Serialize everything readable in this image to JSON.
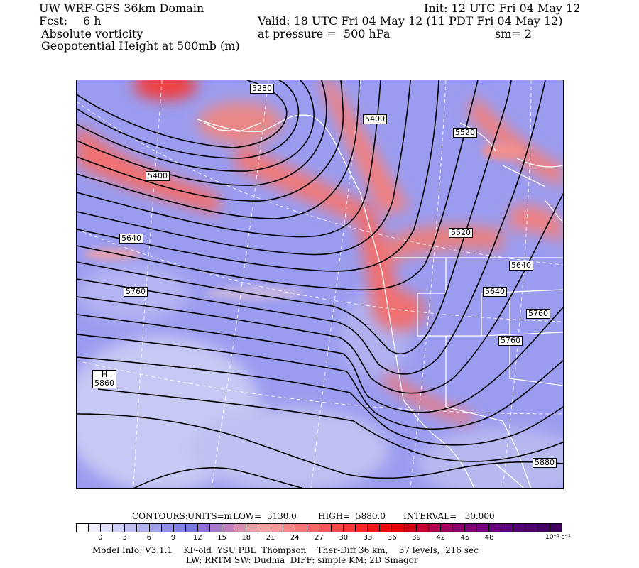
{
  "header": {
    "line1_left": "UW WRF-GFS 36km Domain",
    "line1_right": "Init: 12 UTC Fri 04 May 12",
    "line2_left_label": "Fcst:",
    "line2_left_value": "6 h",
    "line2_right": "Valid: 18 UTC Fri 04 May 12 (11 PDT Fri 04 May 12)",
    "line3_left": "Absolute vorticity",
    "line3_mid": "at pressure =  500 hPa",
    "line3_right": "sm= 2",
    "line4_left": "Geopotential Height at 500mb (m)"
  },
  "contour_labels": [
    "5280",
    "5400",
    "5520",
    "5400",
    "5640",
    "5520",
    "5760",
    "5640",
    "5640",
    "5760",
    "5760",
    "5880",
    "H",
    "5860"
  ],
  "footer": {
    "contours_label": "CONTOURS:",
    "units": "UNITS=m",
    "low": "LOW=  5130.0",
    "high": "HIGH=  5880.0",
    "interval": "INTERVAL=   30.000",
    "model_info": "Model Info: V3.1.1    KF-old  YSU PBL  Thompson    Ther-Diff 36 km,    37 levels,  216 sec",
    "physics": "LW: RRTM SW: Dudhia  DIFF: simple KM: 2D Smagor"
  },
  "colorbar": {
    "ticks": [
      "0",
      "3",
      "6",
      "9",
      "12",
      "15",
      "18",
      "21",
      "24",
      "27",
      "30",
      "33",
      "36",
      "39",
      "42",
      "45",
      "48"
    ],
    "units": "10⁻⁵ s⁻¹",
    "colors": [
      "#ffffff",
      "#f0f0ff",
      "#e0e0fb",
      "#d0d0f8",
      "#c0c0f5",
      "#b0b0f2",
      "#a0a0ee",
      "#9090ea",
      "#8080e6",
      "#7878e0",
      "#9070d8",
      "#a878cc",
      "#c080c0",
      "#d890b0",
      "#e8a0a8",
      "#f4a4a4",
      "#f89898",
      "#f88888",
      "#f87878",
      "#f86868",
      "#f85858",
      "#f84848",
      "#f83838",
      "#f82828",
      "#f01818",
      "#e80c0c",
      "#e00000",
      "#d00010",
      "#c00030",
      "#b00050",
      "#a00060",
      "#900070",
      "#800078",
      "#780080",
      "#6c0080",
      "#600080",
      "#580078",
      "#500070",
      "#480068",
      "#400060"
    ]
  }
}
